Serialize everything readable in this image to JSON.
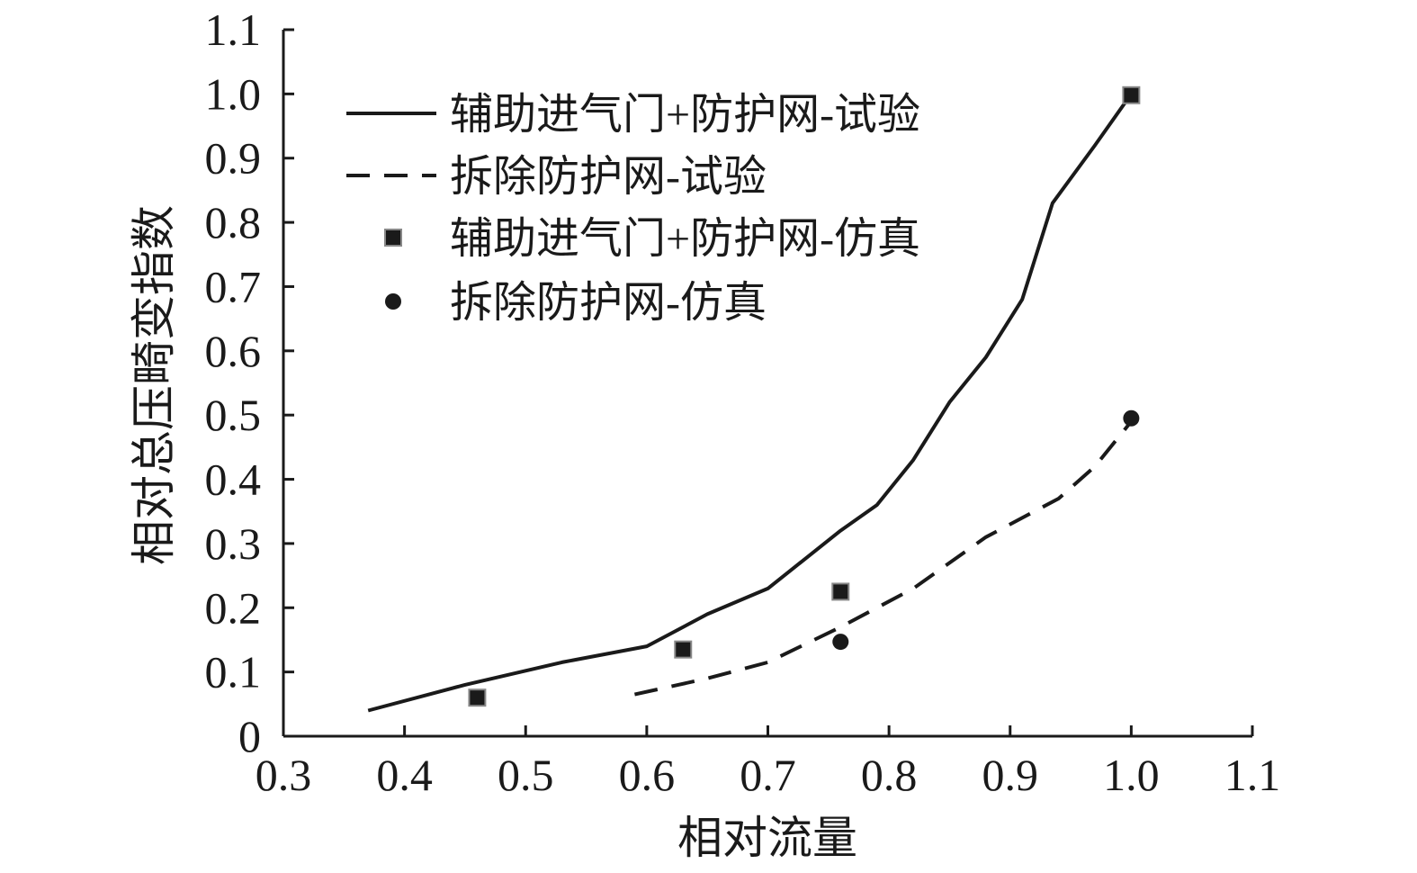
{
  "chart_data": {
    "type": "line",
    "title": "",
    "xlabel": "相对流量",
    "ylabel": "相对总压畸变指数",
    "xlim": [
      0.3,
      1.1
    ],
    "ylim": [
      0,
      1.1
    ],
    "x_ticks": [
      0.3,
      0.4,
      0.5,
      0.6,
      0.7,
      0.8,
      0.9,
      1.0,
      1.1
    ],
    "x_tick_labels": [
      "0.3",
      "0.4",
      "0.5",
      "0.6",
      "0.7",
      "0.8",
      "0.9",
      "1.0",
      "1.1"
    ],
    "y_ticks": [
      0,
      0.1,
      0.2,
      0.3,
      0.4,
      0.5,
      0.6,
      0.7,
      0.8,
      0.9,
      1.0,
      1.1
    ],
    "y_tick_labels": [
      "0",
      "0.1",
      "0.2",
      "0.3",
      "0.4",
      "0.5",
      "0.6",
      "0.7",
      "0.8",
      "0.9",
      "1.0",
      "1.1"
    ],
    "grid": false,
    "legend_position": "top-left",
    "series": [
      {
        "name": "辅助进气门+防护网-试验",
        "kind": "line",
        "style": "solid",
        "color": "#1a1a1a",
        "x": [
          0.37,
          0.45,
          0.53,
          0.6,
          0.65,
          0.7,
          0.76,
          0.79,
          0.82,
          0.85,
          0.88,
          0.91,
          0.935,
          0.97,
          1.0
        ],
        "y": [
          0.04,
          0.08,
          0.115,
          0.14,
          0.19,
          0.23,
          0.32,
          0.36,
          0.43,
          0.52,
          0.59,
          0.68,
          0.83,
          0.92,
          1.0
        ]
      },
      {
        "name": "拆除防护网-试验",
        "kind": "line",
        "style": "dashed",
        "color": "#1a1a1a",
        "x": [
          0.59,
          0.65,
          0.7,
          0.76,
          0.82,
          0.88,
          0.94,
          0.97,
          1.0
        ],
        "y": [
          0.065,
          0.09,
          0.115,
          0.17,
          0.23,
          0.31,
          0.37,
          0.42,
          0.49
        ]
      },
      {
        "name": "辅助进气门+防护网-仿真",
        "kind": "scatter",
        "marker": "square",
        "color": "#1a1a1a",
        "x": [
          0.46,
          0.63,
          0.76,
          1.0
        ],
        "y": [
          0.06,
          0.135,
          0.225,
          0.998
        ]
      },
      {
        "name": "拆除防护网-仿真",
        "kind": "scatter",
        "marker": "circle",
        "color": "#1a1a1a",
        "x": [
          0.76,
          1.0
        ],
        "y": [
          0.147,
          0.495
        ]
      }
    ]
  }
}
